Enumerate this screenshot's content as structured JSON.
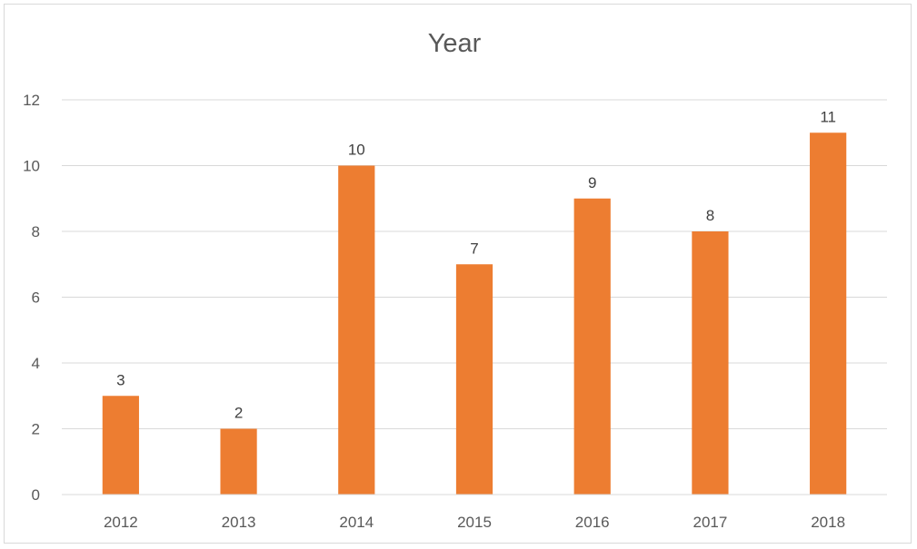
{
  "chart_data": {
    "type": "bar",
    "title": "Year",
    "categories": [
      "2012",
      "2013",
      "2014",
      "2015",
      "2016",
      "2017",
      "2018"
    ],
    "values": [
      3,
      2,
      10,
      7,
      9,
      8,
      11
    ],
    "xlabel": "",
    "ylabel": "",
    "ylim": [
      0,
      12
    ],
    "yticks": [
      0,
      2,
      4,
      6,
      8,
      10,
      12
    ],
    "grid": true,
    "legend": "none",
    "data_labels": true,
    "bar_color": "#ed7d31",
    "grid_color": "#d9d9d9"
  }
}
